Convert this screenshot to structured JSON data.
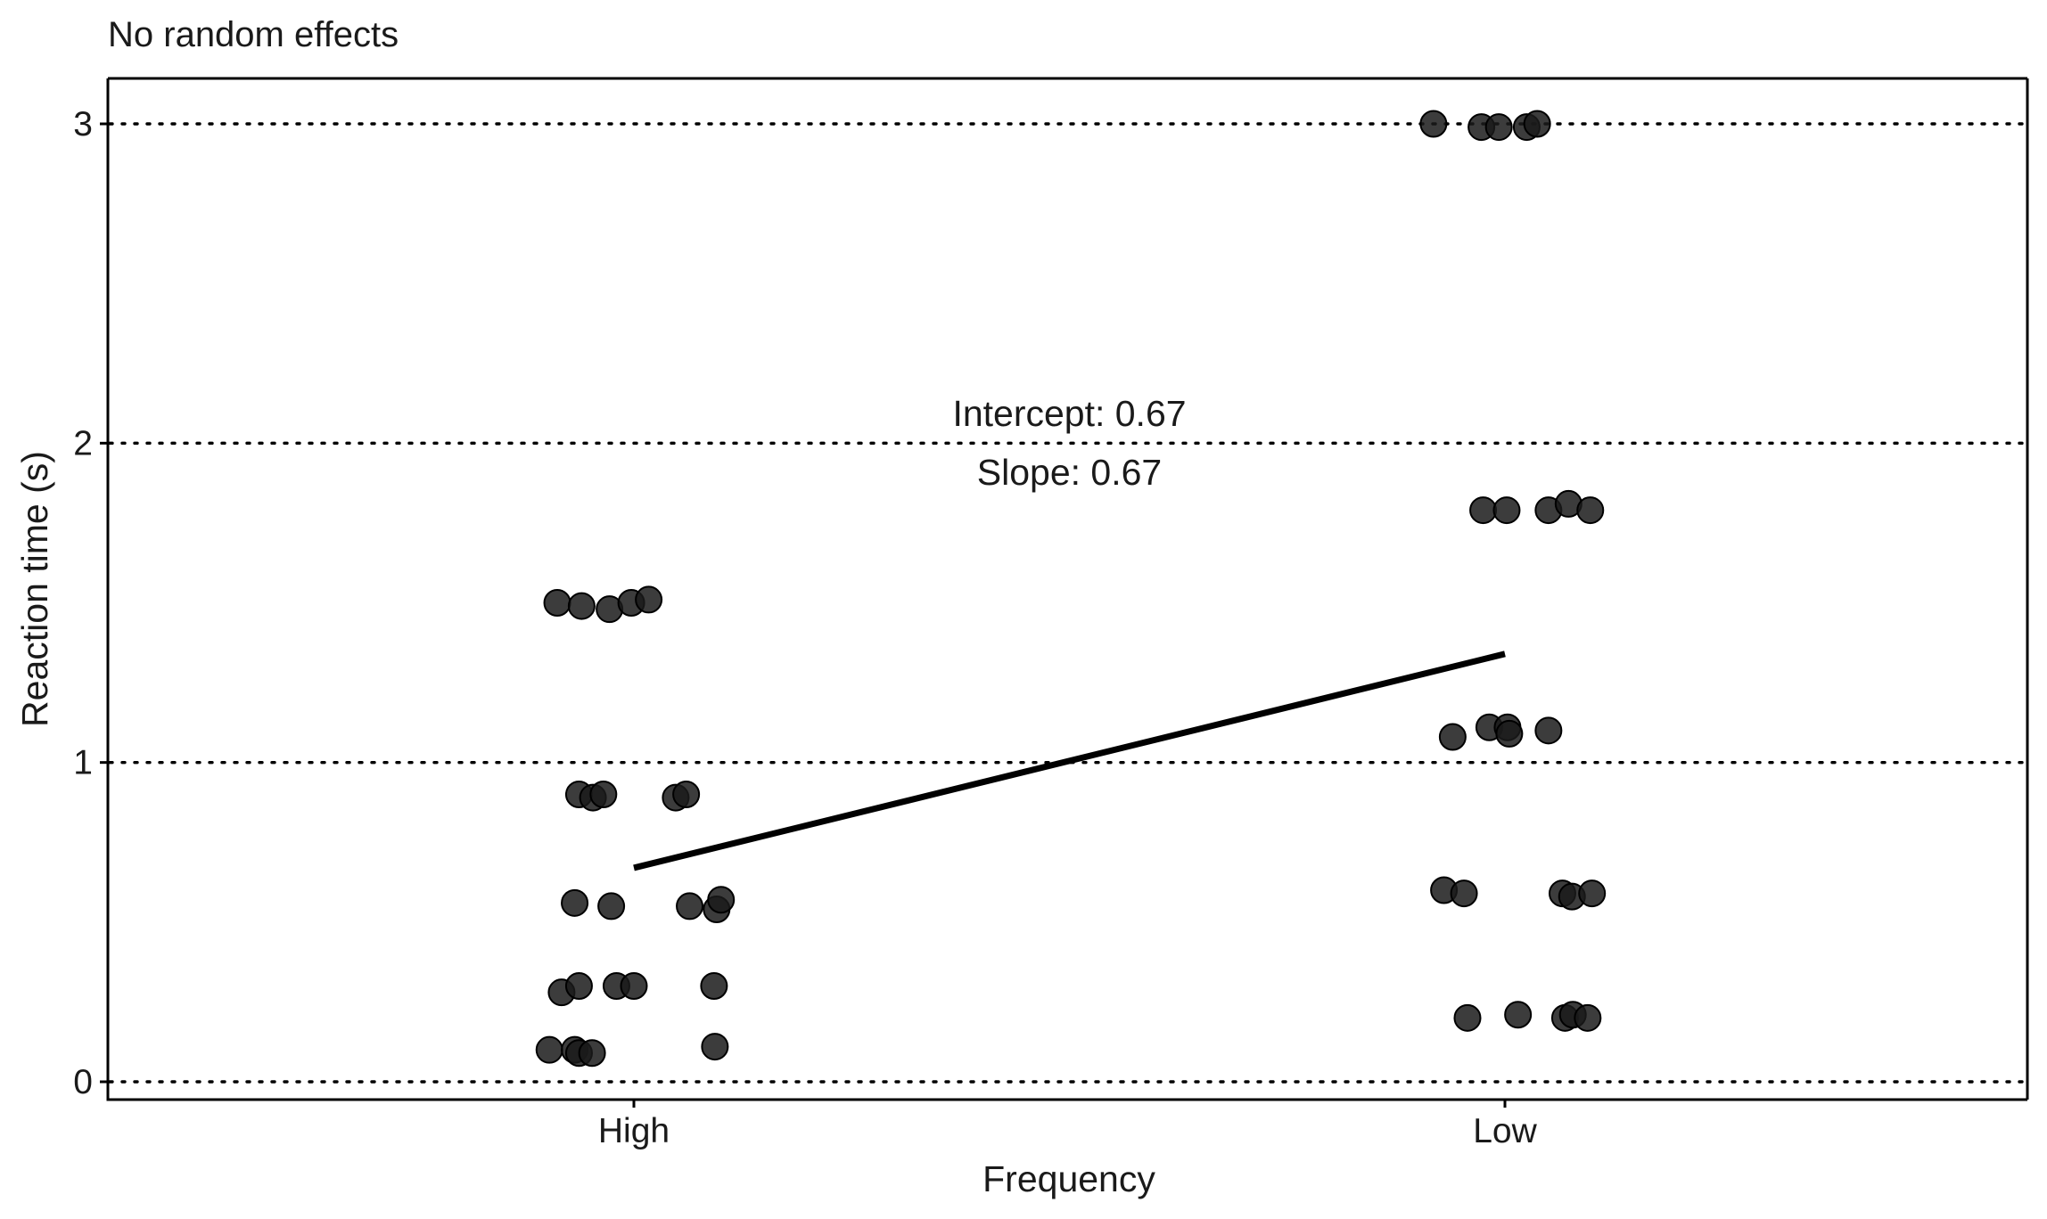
{
  "chart_data": {
    "type": "scatter",
    "title": "No random effects",
    "xlabel": "Frequency",
    "ylabel": "Reaction time (s)",
    "categories": [
      "High",
      "Low"
    ],
    "ylim": [
      -0.06,
      3.14
    ],
    "y_ticks": [
      "0",
      "1",
      "2",
      "3"
    ],
    "grid": "horizontal dotted",
    "annotations": [
      "Intercept: 0.67",
      "Slope: 0.67"
    ],
    "regression": {
      "intercept": 0.67,
      "slope": 0.67
    },
    "series": [
      {
        "category": "High",
        "points": [
          {
            "dx": -0.088,
            "y": 1.5
          },
          {
            "dx": -0.06,
            "y": 1.49
          },
          {
            "dx": -0.028,
            "y": 1.48
          },
          {
            "dx": -0.003,
            "y": 1.5
          },
          {
            "dx": 0.017,
            "y": 1.51
          },
          {
            "dx": -0.063,
            "y": 0.9
          },
          {
            "dx": -0.047,
            "y": 0.89
          },
          {
            "dx": -0.035,
            "y": 0.9
          },
          {
            "dx": 0.048,
            "y": 0.89
          },
          {
            "dx": 0.06,
            "y": 0.9
          },
          {
            "dx": -0.068,
            "y": 0.56
          },
          {
            "dx": -0.026,
            "y": 0.55
          },
          {
            "dx": 0.064,
            "y": 0.55
          },
          {
            "dx": 0.095,
            "y": 0.54
          },
          {
            "dx": 0.1,
            "y": 0.57
          },
          {
            "dx": -0.083,
            "y": 0.28
          },
          {
            "dx": -0.063,
            "y": 0.3
          },
          {
            "dx": -0.02,
            "y": 0.3
          },
          {
            "dx": 0.0,
            "y": 0.3
          },
          {
            "dx": 0.092,
            "y": 0.3
          },
          {
            "dx": -0.097,
            "y": 0.1
          },
          {
            "dx": -0.068,
            "y": 0.1
          },
          {
            "dx": -0.063,
            "y": 0.09
          },
          {
            "dx": -0.048,
            "y": 0.09
          },
          {
            "dx": 0.093,
            "y": 0.11
          }
        ]
      },
      {
        "category": "Low",
        "points": [
          {
            "dx": -0.082,
            "y": 3.0
          },
          {
            "dx": -0.027,
            "y": 2.99
          },
          {
            "dx": -0.007,
            "y": 2.99
          },
          {
            "dx": 0.025,
            "y": 2.99
          },
          {
            "dx": 0.037,
            "y": 3.0
          },
          {
            "dx": -0.025,
            "y": 1.79
          },
          {
            "dx": 0.002,
            "y": 1.79
          },
          {
            "dx": 0.05,
            "y": 1.79
          },
          {
            "dx": 0.073,
            "y": 1.81
          },
          {
            "dx": 0.098,
            "y": 1.79
          },
          {
            "dx": -0.06,
            "y": 1.08
          },
          {
            "dx": -0.018,
            "y": 1.11
          },
          {
            "dx": 0.003,
            "y": 1.11
          },
          {
            "dx": 0.005,
            "y": 1.09
          },
          {
            "dx": 0.05,
            "y": 1.1
          },
          {
            "dx": -0.07,
            "y": 0.6
          },
          {
            "dx": -0.047,
            "y": 0.59
          },
          {
            "dx": 0.066,
            "y": 0.59
          },
          {
            "dx": 0.077,
            "y": 0.58
          },
          {
            "dx": 0.1,
            "y": 0.59
          },
          {
            "dx": -0.043,
            "y": 0.2
          },
          {
            "dx": 0.015,
            "y": 0.21
          },
          {
            "dx": 0.069,
            "y": 0.2
          },
          {
            "dx": 0.078,
            "y": 0.21
          },
          {
            "dx": 0.095,
            "y": 0.2
          }
        ]
      }
    ]
  }
}
